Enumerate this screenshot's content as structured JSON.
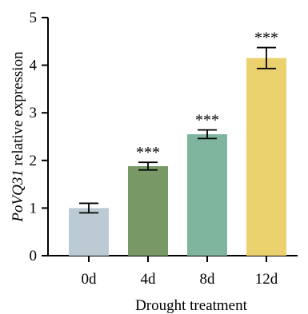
{
  "chart_data": {
    "type": "bar",
    "title": "",
    "ylabel_italic": "PoVQ31",
    "ylabel_rest": " relative expression",
    "xlabel": "Drought treatment",
    "categories": [
      "0d",
      "4d",
      "8d",
      "12d"
    ],
    "values": [
      1.0,
      1.88,
      2.55,
      4.15
    ],
    "errors": [
      0.1,
      0.08,
      0.09,
      0.22
    ],
    "significance": [
      "",
      "***",
      "***",
      "***"
    ],
    "colors": [
      "#bccbd3",
      "#789866",
      "#7fb59e",
      "#ebd06e"
    ],
    "ylim": [
      0,
      5
    ],
    "yticks": [
      "0",
      "1",
      "2",
      "3",
      "4",
      "5"
    ],
    "grid": false,
    "legend": "none"
  }
}
